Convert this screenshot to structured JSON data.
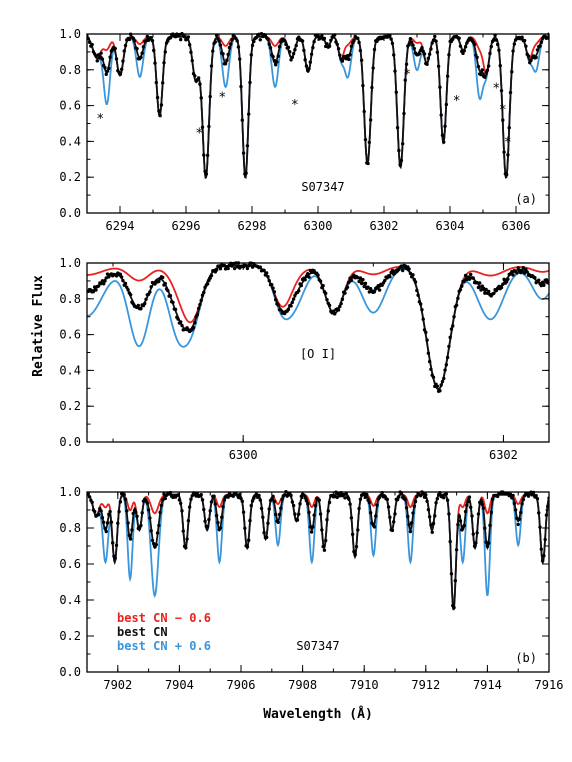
{
  "figure": {
    "ylabel": "Relative Flux",
    "xlabel": "Wavelength (Å)"
  },
  "chart_data": [
    {
      "type": "line",
      "panel_tag": "(a)",
      "star": "S07347",
      "xlim": [
        6293,
        6307
      ],
      "ylim": [
        0,
        1.0
      ],
      "xticks": [
        6294,
        6296,
        6298,
        6300,
        6302,
        6304,
        6306
      ],
      "yticks": [
        0.0,
        0.2,
        0.4,
        0.6,
        0.8,
        1.0
      ],
      "lines": [
        {
          "center": 6293.3,
          "depth": 0.12,
          "width": 0.12
        },
        {
          "center": 6294.0,
          "depth": 0.22,
          "width": 0.1
        },
        {
          "center": 6295.2,
          "depth": 0.45,
          "width": 0.09
        },
        {
          "center": 6296.3,
          "depth": 0.25,
          "width": 0.1
        },
        {
          "center": 6296.6,
          "depth": 0.8,
          "width": 0.1
        },
        {
          "center": 6297.8,
          "depth": 0.8,
          "width": 0.09
        },
        {
          "center": 6299.2,
          "depth": 0.12,
          "width": 0.1
        },
        {
          "center": 6299.7,
          "depth": 0.2,
          "width": 0.09
        },
        {
          "center": 6300.3,
          "depth": 0.06,
          "width": 0.07
        },
        {
          "center": 6300.7,
          "depth": 0.12,
          "width": 0.08
        },
        {
          "center": 6301.5,
          "depth": 0.72,
          "width": 0.1
        },
        {
          "center": 6302.5,
          "depth": 0.74,
          "width": 0.1
        },
        {
          "center": 6303.3,
          "depth": 0.15,
          "width": 0.09
        },
        {
          "center": 6303.8,
          "depth": 0.6,
          "width": 0.09
        },
        {
          "center": 6304.4,
          "depth": 0.08,
          "width": 0.08
        },
        {
          "center": 6305.1,
          "depth": 0.2,
          "width": 0.09
        },
        {
          "center": 6305.7,
          "depth": 0.8,
          "width": 0.1
        },
        {
          "center": 6306.4,
          "depth": 0.12,
          "width": 0.09
        }
      ],
      "cn_lines": [
        {
          "center": 6293.6,
          "depth": 0.2,
          "width": 0.1
        },
        {
          "center": 6294.6,
          "depth": 0.12,
          "width": 0.1
        },
        {
          "center": 6297.2,
          "depth": 0.15,
          "width": 0.1
        },
        {
          "center": 6298.7,
          "depth": 0.15,
          "width": 0.1
        },
        {
          "center": 6300.9,
          "depth": 0.12,
          "width": 0.1
        },
        {
          "center": 6303.0,
          "depth": 0.1,
          "width": 0.1
        },
        {
          "center": 6304.9,
          "depth": 0.18,
          "width": 0.1
        },
        {
          "center": 6306.6,
          "depth": 0.1,
          "width": 0.1
        }
      ],
      "asterisks": [
        {
          "x": 6293.4,
          "y": 0.53
        },
        {
          "x": 6296.4,
          "y": 0.45
        },
        {
          "x": 6297.1,
          "y": 0.65
        },
        {
          "x": 6299.3,
          "y": 0.61
        },
        {
          "x": 6302.7,
          "y": 0.78
        },
        {
          "x": 6304.2,
          "y": 0.63
        },
        {
          "x": 6305.4,
          "y": 0.7
        },
        {
          "x": 6305.6,
          "y": 0.58
        },
        {
          "x": 6305.75,
          "y": 0.4
        }
      ]
    },
    {
      "type": "line",
      "panel_tag": "",
      "label": "[O I]",
      "xlim": [
        6298.8,
        6302.35
      ],
      "ylim": [
        0,
        1.0
      ],
      "xticks": [
        6300,
        6302
      ],
      "yticks": [
        0.0,
        0.2,
        0.4,
        0.6,
        0.8,
        1.0
      ],
      "lines": [
        {
          "center": 6299.6,
          "depth": 0.3,
          "width": 0.08
        },
        {
          "center": 6300.3,
          "depth": 0.22,
          "width": 0.07
        },
        {
          "center": 6300.7,
          "depth": 0.27,
          "width": 0.07
        },
        {
          "center": 6301.5,
          "depth": 0.7,
          "width": 0.09
        }
      ],
      "cn_lines": [
        {
          "center": 6298.8,
          "depth": 0.15,
          "width": 0.12
        },
        {
          "center": 6299.2,
          "depth": 0.24,
          "width": 0.08
        },
        {
          "center": 6299.5,
          "depth": 0.18,
          "width": 0.08
        },
        {
          "center": 6300.4,
          "depth": 0.1,
          "width": 0.08
        },
        {
          "center": 6301.0,
          "depth": 0.14,
          "width": 0.09
        },
        {
          "center": 6301.9,
          "depth": 0.16,
          "width": 0.1
        },
        {
          "center": 6302.3,
          "depth": 0.1,
          "width": 0.08
        }
      ]
    },
    {
      "type": "line",
      "panel_tag": "(b)",
      "star": "S07347",
      "xlim": [
        7901,
        7916
      ],
      "ylim": [
        0,
        1.0
      ],
      "xticks": [
        7902,
        7904,
        7906,
        7908,
        7910,
        7912,
        7914,
        7916
      ],
      "yticks": [
        0.0,
        0.2,
        0.4,
        0.6,
        0.8,
        1.0
      ],
      "lines": [
        {
          "center": 7901.3,
          "depth": 0.12,
          "width": 0.1
        },
        {
          "center": 7901.9,
          "depth": 0.38,
          "width": 0.08
        },
        {
          "center": 7902.7,
          "depth": 0.2,
          "width": 0.08
        },
        {
          "center": 7904.2,
          "depth": 0.3,
          "width": 0.08
        },
        {
          "center": 7904.9,
          "depth": 0.2,
          "width": 0.08
        },
        {
          "center": 7906.2,
          "depth": 0.3,
          "width": 0.08
        },
        {
          "center": 7906.8,
          "depth": 0.25,
          "width": 0.08
        },
        {
          "center": 7907.8,
          "depth": 0.15,
          "width": 0.08
        },
        {
          "center": 7908.7,
          "depth": 0.3,
          "width": 0.08
        },
        {
          "center": 7909.7,
          "depth": 0.35,
          "width": 0.08
        },
        {
          "center": 7910.9,
          "depth": 0.2,
          "width": 0.08
        },
        {
          "center": 7912.2,
          "depth": 0.2,
          "width": 0.08
        },
        {
          "center": 7912.9,
          "depth": 0.65,
          "width": 0.08
        },
        {
          "center": 7913.6,
          "depth": 0.3,
          "width": 0.08
        },
        {
          "center": 7915.8,
          "depth": 0.38,
          "width": 0.08
        }
      ],
      "cn_lines": [
        {
          "center": 7901.6,
          "depth": 0.2,
          "width": 0.09
        },
        {
          "center": 7902.4,
          "depth": 0.25,
          "width": 0.08
        },
        {
          "center": 7903.2,
          "depth": 0.3,
          "width": 0.12
        },
        {
          "center": 7905.3,
          "depth": 0.2,
          "width": 0.08
        },
        {
          "center": 7907.2,
          "depth": 0.15,
          "width": 0.08
        },
        {
          "center": 7908.3,
          "depth": 0.2,
          "width": 0.08
        },
        {
          "center": 7910.3,
          "depth": 0.18,
          "width": 0.08
        },
        {
          "center": 7911.5,
          "depth": 0.2,
          "width": 0.08
        },
        {
          "center": 7913.2,
          "depth": 0.2,
          "width": 0.08
        },
        {
          "center": 7914.0,
          "depth": 0.3,
          "width": 0.08
        },
        {
          "center": 7915.0,
          "depth": 0.15,
          "width": 0.08
        }
      ],
      "legend": [
        {
          "text": "best CN − 0.6",
          "color": "#e8231f"
        },
        {
          "text": "best CN",
          "color": "#111111"
        },
        {
          "text": "best CN + 0.6",
          "color": "#3a96dc"
        }
      ]
    }
  ],
  "colors": {
    "low_cn": "#e8231f",
    "best": "#111111",
    "high_cn": "#3a96dc",
    "observed": "#000000"
  }
}
